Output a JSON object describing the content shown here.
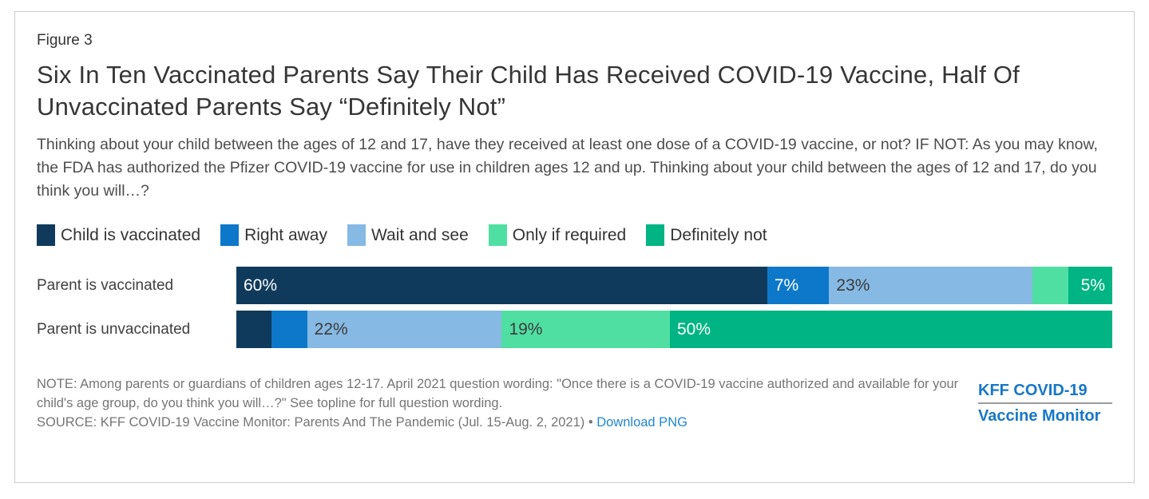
{
  "figure_label": "Figure 3",
  "title": "Six In Ten Vaccinated Parents Say Their Child Has Received COVID-19 Vaccine, Half Of Unvaccinated Parents Say “Definitely Not”",
  "subtitle": "Thinking about your child between the ages of 12 and 17, have they received at least one dose of a COVID-19 vaccine, or not? IF NOT: As you may know, the FDA has authorized the Pfizer COVID-19 vaccine for use in children ages 12 and up. Thinking about your child between the ages of 12 and 17, do you think you will…?",
  "chart_data": {
    "type": "bar",
    "subtype": "horizontal-stacked",
    "value_suffix": "%",
    "xlim": [
      0,
      100
    ],
    "legend_position": "top",
    "categories": [
      "Parent is vaccinated",
      "Parent is unvaccinated"
    ],
    "series": [
      {
        "name": "Child is vaccinated",
        "color": "#103a5c",
        "label_color": "#ffffff",
        "values": [
          60,
          4
        ],
        "labels": [
          "60%",
          ""
        ]
      },
      {
        "name": "Right away",
        "color": "#0d78c9",
        "label_color": "#ffffff",
        "values": [
          7,
          4
        ],
        "labels": [
          "7%",
          ""
        ]
      },
      {
        "name": "Wait and see",
        "color": "#86b9e3",
        "label_color": "#3b3b3b",
        "values": [
          23,
          22
        ],
        "labels": [
          "23%",
          "22%"
        ]
      },
      {
        "name": "Only if required",
        "color": "#50dfa2",
        "label_color": "#3b3b3b",
        "values": [
          4,
          19
        ],
        "labels": [
          "",
          "19%"
        ]
      },
      {
        "name": "Definitely not",
        "color": "#00b483",
        "label_color": "#ffffff",
        "values": [
          5,
          50
        ],
        "labels": [
          "5%",
          "50%"
        ],
        "label_align": [
          "right",
          "left"
        ]
      }
    ]
  },
  "footer": {
    "note": "NOTE: Among parents or guardians of children ages 12-17. April 2021 question wording: \"Once there is a COVID-19 vaccine authorized and available for your child's age group, do you think you will…?\" See topline for full question wording.",
    "source_prefix": "SOURCE: KFF COVID-19 Vaccine Monitor: Parents And The Pandemic (Jul. 15-Aug. 2, 2021) • ",
    "download_link": "Download PNG",
    "logo_line1": "KFF COVID-19",
    "logo_line2": "Vaccine Monitor"
  }
}
